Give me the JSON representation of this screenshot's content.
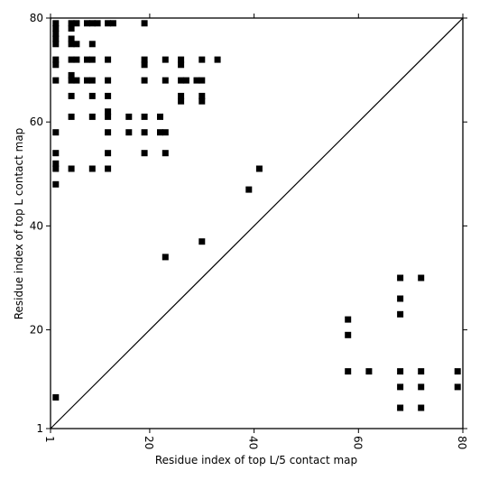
{
  "chart_data": {
    "type": "scatter",
    "title": "",
    "xlabel": "Residue index of top L/5 contact map",
    "ylabel": "Residue index of top L contact map",
    "xlim": [
      1,
      80
    ],
    "ylim": [
      1,
      80
    ],
    "x_ticks": [
      1,
      20,
      40,
      60,
      80
    ],
    "x_tick_labels": [
      "1",
      "20",
      "40",
      "60",
      "80"
    ],
    "y_ticks": [
      1,
      20,
      40,
      60,
      80
    ],
    "y_tick_labels": [
      "1",
      "20",
      "40",
      "60",
      "80"
    ],
    "grid": false,
    "marker_shape": "square",
    "marker_color": "#000000",
    "diagonal_line": {
      "from": [
        1,
        1
      ],
      "to": [
        80,
        80
      ],
      "color": "#000000"
    },
    "upper_triangle_top_L": {
      "points": [
        [
          2,
          79
        ],
        [
          2,
          78
        ],
        [
          2,
          77
        ],
        [
          2,
          76
        ],
        [
          2,
          75
        ],
        [
          5,
          79
        ],
        [
          5,
          78
        ],
        [
          6,
          79
        ],
        [
          5,
          76
        ],
        [
          5,
          75
        ],
        [
          6,
          75
        ],
        [
          8,
          79
        ],
        [
          9,
          79
        ],
        [
          10,
          79
        ],
        [
          12,
          79
        ],
        [
          13,
          79
        ],
        [
          19,
          79
        ],
        [
          9,
          75
        ],
        [
          2,
          72
        ],
        [
          2,
          71
        ],
        [
          5,
          72
        ],
        [
          6,
          72
        ],
        [
          8,
          72
        ],
        [
          9,
          72
        ],
        [
          12,
          72
        ],
        [
          19,
          72
        ],
        [
          19,
          71
        ],
        [
          23,
          72
        ],
        [
          26,
          72
        ],
        [
          26,
          71
        ],
        [
          30,
          72
        ],
        [
          33,
          72
        ],
        [
          5,
          69
        ],
        [
          2,
          68
        ],
        [
          5,
          68
        ],
        [
          6,
          68
        ],
        [
          8,
          68
        ],
        [
          9,
          68
        ],
        [
          12,
          68
        ],
        [
          19,
          68
        ],
        [
          23,
          68
        ],
        [
          26,
          68
        ],
        [
          27,
          68
        ],
        [
          29,
          68
        ],
        [
          30,
          68
        ],
        [
          5,
          65
        ],
        [
          9,
          65
        ],
        [
          12,
          65
        ],
        [
          26,
          65
        ],
        [
          26,
          64
        ],
        [
          30,
          65
        ],
        [
          30,
          64
        ],
        [
          12,
          62
        ],
        [
          5,
          61
        ],
        [
          9,
          61
        ],
        [
          12,
          61
        ],
        [
          16,
          61
        ],
        [
          19,
          61
        ],
        [
          22,
          61
        ],
        [
          2,
          58
        ],
        [
          12,
          58
        ],
        [
          16,
          58
        ],
        [
          19,
          58
        ],
        [
          22,
          58
        ],
        [
          23,
          58
        ],
        [
          2,
          54
        ],
        [
          12,
          54
        ],
        [
          19,
          54
        ],
        [
          23,
          54
        ],
        [
          2,
          52
        ],
        [
          2,
          51
        ],
        [
          5,
          51
        ],
        [
          9,
          51
        ],
        [
          12,
          51
        ],
        [
          2,
          48
        ],
        [
          41,
          51
        ],
        [
          39,
          47
        ],
        [
          30,
          37
        ],
        [
          23,
          34
        ]
      ]
    },
    "lower_triangle_top_L5": {
      "points": [
        [
          2,
          7
        ],
        [
          58,
          22
        ],
        [
          58,
          19
        ],
        [
          58,
          12
        ],
        [
          62,
          12
        ],
        [
          68,
          30
        ],
        [
          72,
          30
        ],
        [
          68,
          26
        ],
        [
          68,
          23
        ],
        [
          68,
          12
        ],
        [
          72,
          12
        ],
        [
          79,
          12
        ],
        [
          68,
          9
        ],
        [
          72,
          9
        ],
        [
          79,
          9
        ],
        [
          68,
          5
        ],
        [
          72,
          5
        ]
      ]
    }
  }
}
